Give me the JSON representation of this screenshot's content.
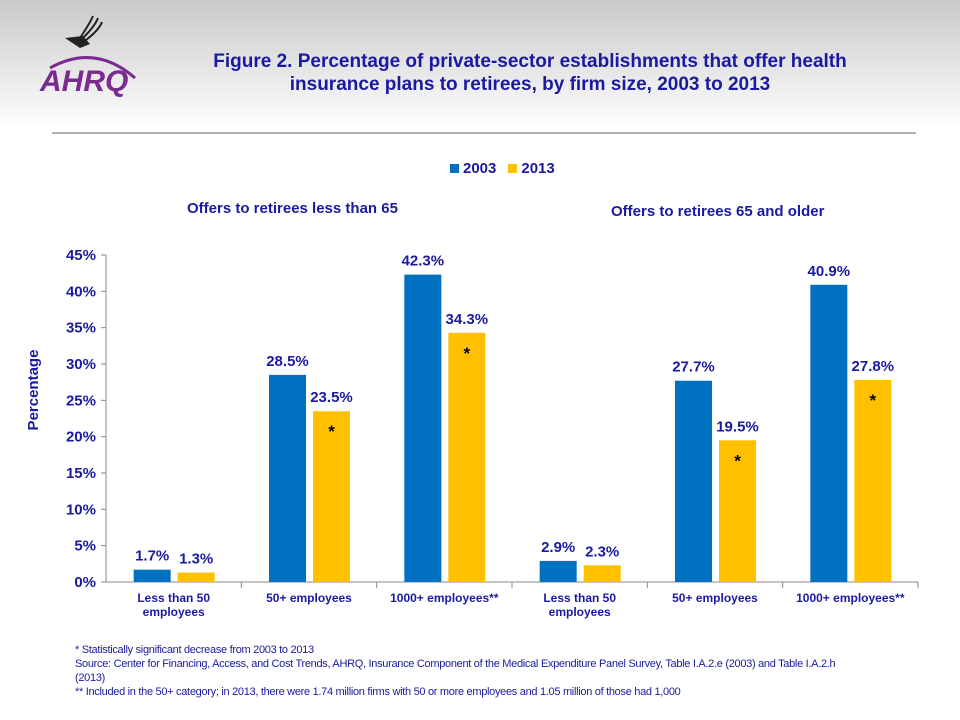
{
  "title": "Figure 2. Percentage of private-sector establishments that offer health insurance plans to retirees, by firm size, 2003 to 2013",
  "logo_text": "AHRQ",
  "chart_data": {
    "type": "bar",
    "ylabel": "Percentage",
    "ylim": [
      0,
      45
    ],
    "yticks": [
      "0%",
      "5%",
      "10%",
      "15%",
      "20%",
      "25%",
      "30%",
      "35%",
      "40%",
      "45%"
    ],
    "panels": [
      "Offers to retirees less than 65",
      "Offers to retirees 65 and older"
    ],
    "categories": [
      "Less than 50 employees",
      "50+ employees",
      "1000+ employees**",
      "Less than 50 employees",
      "50+ employees",
      "1000+ employees**"
    ],
    "series": [
      {
        "name": "2003",
        "color": "#0070C0",
        "values": [
          1.7,
          28.5,
          42.3,
          2.9,
          27.7,
          40.9
        ],
        "labels": [
          "1.7%",
          "28.5%",
          "42.3%",
          "2.9%",
          "27.7%",
          "40.9%"
        ]
      },
      {
        "name": "2013",
        "color": "#FFC000",
        "values": [
          1.3,
          23.5,
          34.3,
          2.3,
          19.5,
          27.8
        ],
        "labels": [
          "1.3%",
          "23.5%",
          "34.3%",
          "2.3%",
          "19.5%",
          "27.8%"
        ],
        "significant": [
          false,
          true,
          true,
          false,
          true,
          true
        ]
      }
    ],
    "significance_marker": "*",
    "legend": "top-center"
  },
  "footnotes": [
    "* Statistically significant decrease from 2003 to 2013",
    "Source: Center for Financing, Access, and Cost Trends, AHRQ, Insurance Component of the Medical Expenditure Panel Survey, Table I.A.2.e (2003) and Table I.A.2.h (2013)",
    "** Included in the 50+ category; in 2013, there were 1.74 million firms with 50 or more employees and 1.05 million of those had 1,000"
  ]
}
